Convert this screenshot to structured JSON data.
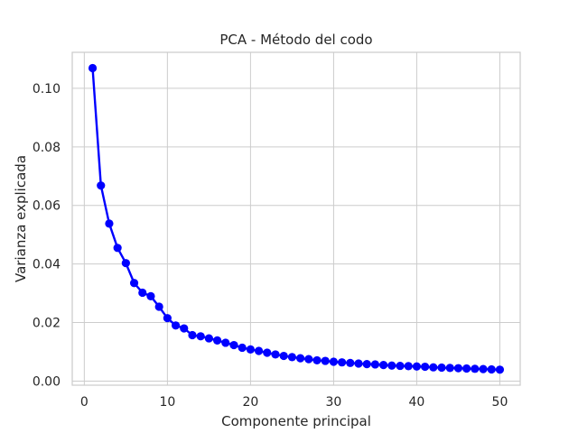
{
  "chart_data": {
    "type": "line",
    "title": "PCA - Método del codo",
    "xlabel": "Componente principal",
    "ylabel": "Varianza explicada",
    "xlim": [
      -1.45,
      52.45
    ],
    "ylim": [
      -0.0014,
      0.1123
    ],
    "xticks": [
      0,
      10,
      20,
      30,
      40,
      50
    ],
    "yticks": [
      0.0,
      0.02,
      0.04,
      0.06,
      0.08,
      0.1
    ],
    "ytick_labels": [
      "0.00",
      "0.02",
      "0.04",
      "0.06",
      "0.08",
      "0.10"
    ],
    "grid": true,
    "legend": "none",
    "series": [
      {
        "color": "#0000ff",
        "marker": "circle",
        "x": [
          1,
          2,
          3,
          4,
          5,
          6,
          7,
          8,
          9,
          10,
          11,
          12,
          13,
          14,
          15,
          16,
          17,
          18,
          19,
          20,
          21,
          22,
          23,
          24,
          25,
          26,
          27,
          28,
          29,
          30,
          31,
          32,
          33,
          34,
          35,
          36,
          37,
          38,
          39,
          40,
          41,
          42,
          43,
          44,
          45,
          46,
          47,
          48,
          49,
          50
        ],
        "y": [
          0.1069,
          0.0668,
          0.0538,
          0.0455,
          0.0403,
          0.0335,
          0.0302,
          0.029,
          0.0254,
          0.0215,
          0.019,
          0.018,
          0.0157,
          0.0153,
          0.0146,
          0.0139,
          0.0131,
          0.0123,
          0.0114,
          0.0108,
          0.0103,
          0.0097,
          0.0091,
          0.0086,
          0.0082,
          0.0078,
          0.0075,
          0.0071,
          0.0069,
          0.0066,
          0.0064,
          0.0062,
          0.006,
          0.0058,
          0.0057,
          0.0055,
          0.0053,
          0.0052,
          0.0051,
          0.005,
          0.0049,
          0.0047,
          0.0046,
          0.0045,
          0.0044,
          0.0043,
          0.0042,
          0.0041,
          0.004,
          0.0039
        ]
      }
    ]
  }
}
